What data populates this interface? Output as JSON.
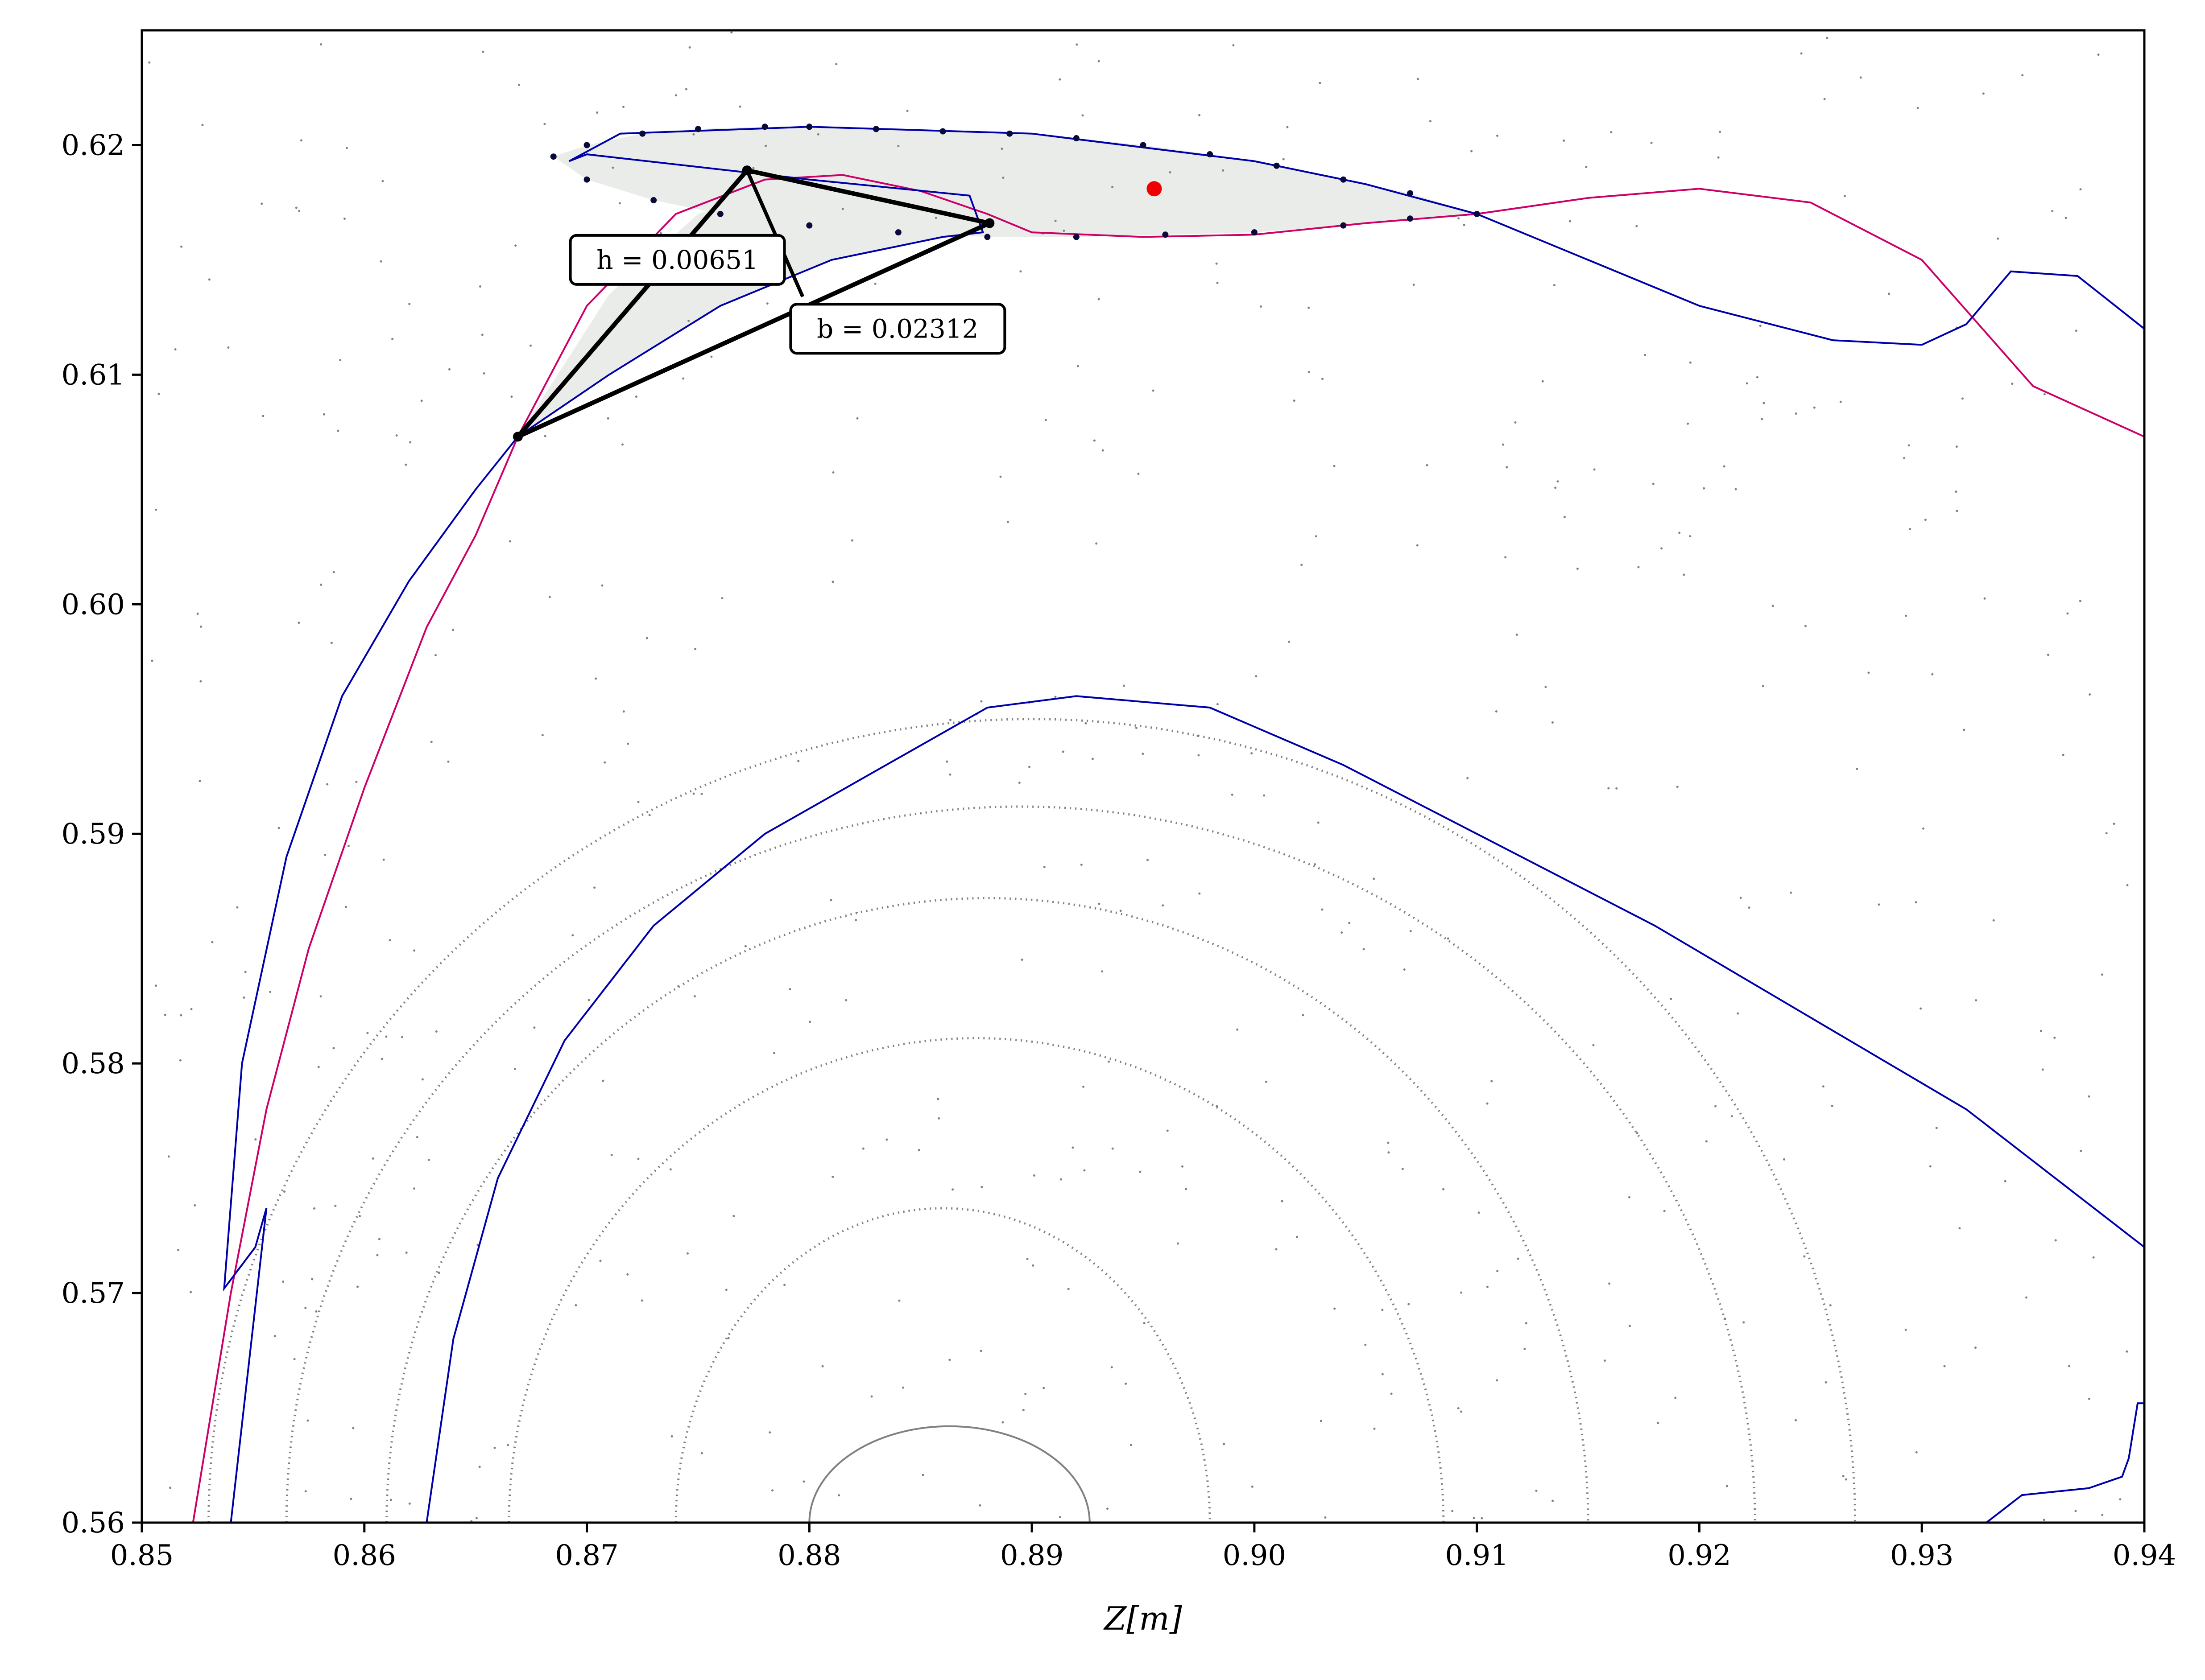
{
  "chart_data": {
    "type": "line",
    "title": "",
    "xlabel": "Z[m]",
    "ylabel": "",
    "xlim": [
      0.85,
      0.94
    ],
    "ylim": [
      0.56,
      0.625
    ],
    "x_ticks": [
      "0.85",
      "0.86",
      "0.87",
      "0.88",
      "0.89",
      "0.90",
      "0.91",
      "0.92",
      "0.93",
      "0.94"
    ],
    "y_ticks": [
      "0.56",
      "0.57",
      "0.58",
      "0.59",
      "0.60",
      "0.61",
      "0.62"
    ],
    "grid": false,
    "colors": {
      "stable_manifold": "#cc0066",
      "unstable_manifold": "#0000aa",
      "poincare_points": "#808080",
      "lobe_fill": "#eaecea",
      "fixed_point": "#ee0000",
      "triangle": "#000000"
    },
    "annotations": [
      {
        "label": "h = 0.00651",
        "h_value": 0.00651
      },
      {
        "label": "b = 0.02312",
        "b_value": 0.02312
      }
    ],
    "triangle_vertices": [
      [
        0.8669,
        0.6073
      ],
      [
        0.8772,
        0.6189
      ],
      [
        0.8881,
        0.6166
      ]
    ],
    "triangle_height_foot": [
      0.8797,
      0.6134
    ],
    "fixed_point": [
      0.8955,
      0.6181
    ],
    "stable_manifold": [
      [
        0.8523,
        0.56
      ],
      [
        0.854,
        0.57
      ],
      [
        0.8556,
        0.578
      ],
      [
        0.8575,
        0.585
      ],
      [
        0.86,
        0.592
      ],
      [
        0.8628,
        0.599
      ],
      [
        0.865,
        0.603
      ],
      [
        0.8669,
        0.6073
      ],
      [
        0.87,
        0.613
      ],
      [
        0.874,
        0.617
      ],
      [
        0.878,
        0.6185
      ],
      [
        0.8815,
        0.6187
      ],
      [
        0.885,
        0.618
      ],
      [
        0.888,
        0.617
      ],
      [
        0.89,
        0.6162
      ],
      [
        0.895,
        0.616
      ],
      [
        0.9,
        0.6161
      ],
      [
        0.905,
        0.6166
      ],
      [
        0.91,
        0.617
      ],
      [
        0.915,
        0.6177
      ],
      [
        0.92,
        0.6181
      ],
      [
        0.925,
        0.6175
      ],
      [
        0.93,
        0.615
      ],
      [
        0.935,
        0.6095
      ],
      [
        0.94,
        0.6073
      ]
    ],
    "unstable_manifold_outer": [
      [
        0.854,
        0.56
      ],
      [
        0.8556,
        0.5737
      ],
      [
        0.8551,
        0.572
      ],
      [
        0.8537,
        0.5702
      ],
      [
        0.8545,
        0.58
      ],
      [
        0.8565,
        0.589
      ],
      [
        0.859,
        0.596
      ],
      [
        0.862,
        0.601
      ],
      [
        0.865,
        0.605
      ],
      [
        0.8669,
        0.6073
      ],
      [
        0.871,
        0.61
      ],
      [
        0.876,
        0.613
      ],
      [
        0.881,
        0.615
      ],
      [
        0.886,
        0.616
      ],
      [
        0.8878,
        0.6162
      ],
      [
        0.8872,
        0.6178
      ],
      [
        0.88,
        0.6185
      ],
      [
        0.87,
        0.6196
      ],
      [
        0.8692,
        0.6193
      ],
      [
        0.8715,
        0.6205
      ],
      [
        0.88,
        0.6208
      ],
      [
        0.89,
        0.6205
      ],
      [
        0.9,
        0.6193
      ],
      [
        0.905,
        0.6183
      ],
      [
        0.91,
        0.617
      ],
      [
        0.915,
        0.615
      ],
      [
        0.92,
        0.613
      ],
      [
        0.926,
        0.6115
      ],
      [
        0.93,
        0.6113
      ],
      [
        0.932,
        0.6122
      ],
      [
        0.934,
        0.6145
      ],
      [
        0.937,
        0.6143
      ],
      [
        0.94,
        0.612
      ]
    ],
    "unstable_manifold_inner": [
      [
        0.8628,
        0.56
      ],
      [
        0.864,
        0.568
      ],
      [
        0.866,
        0.575
      ],
      [
        0.869,
        0.581
      ],
      [
        0.873,
        0.586
      ],
      [
        0.878,
        0.59
      ],
      [
        0.884,
        0.5933
      ],
      [
        0.888,
        0.5955
      ],
      [
        0.892,
        0.596
      ],
      [
        0.898,
        0.5955
      ],
      [
        0.904,
        0.593
      ],
      [
        0.91,
        0.59
      ],
      [
        0.918,
        0.586
      ],
      [
        0.925,
        0.582
      ],
      [
        0.932,
        0.578
      ],
      [
        0.94,
        0.572
      ]
    ],
    "unstable_manifold_corner": [
      [
        0.9329,
        0.56
      ],
      [
        0.9345,
        0.5612
      ],
      [
        0.9375,
        0.5615
      ],
      [
        0.939,
        0.562
      ],
      [
        0.9393,
        0.5628
      ],
      [
        0.9397,
        0.5652
      ],
      [
        0.94,
        0.5652
      ]
    ],
    "lobe_markers": [
      [
        0.8685,
        0.6195
      ],
      [
        0.87,
        0.62
      ],
      [
        0.8725,
        0.6205
      ],
      [
        0.875,
        0.6207
      ],
      [
        0.878,
        0.6208
      ],
      [
        0.88,
        0.6208
      ],
      [
        0.883,
        0.6207
      ],
      [
        0.886,
        0.6206
      ],
      [
        0.889,
        0.6205
      ],
      [
        0.892,
        0.6203
      ],
      [
        0.895,
        0.62
      ],
      [
        0.898,
        0.6196
      ],
      [
        0.901,
        0.6191
      ],
      [
        0.904,
        0.6185
      ],
      [
        0.907,
        0.6179
      ],
      [
        0.91,
        0.617
      ],
      [
        0.87,
        0.6185
      ],
      [
        0.873,
        0.6176
      ],
      [
        0.876,
        0.617
      ],
      [
        0.88,
        0.6165
      ],
      [
        0.884,
        0.6162
      ],
      [
        0.888,
        0.616
      ],
      [
        0.892,
        0.616
      ],
      [
        0.896,
        0.6161
      ],
      [
        0.9,
        0.6162
      ],
      [
        0.904,
        0.6165
      ],
      [
        0.907,
        0.6168
      ]
    ],
    "poincare_sections": [
      {
        "kind": "dense",
        "center": [
          0.8863,
          0.56
        ],
        "rx": 0.0063,
        "ry": 0.0042
      },
      {
        "kind": "dotted",
        "center": [
          0.886,
          0.56
        ],
        "rx": 0.012,
        "ry": 0.0137
      },
      {
        "kind": "dotted",
        "center": [
          0.8875,
          0.56
        ],
        "rx": 0.021,
        "ry": 0.0211
      },
      {
        "kind": "dotted",
        "center": [
          0.888,
          0.56
        ],
        "rx": 0.027,
        "ry": 0.0272
      },
      {
        "kind": "dotted",
        "center": [
          0.8895,
          0.56
        ],
        "rx": 0.033,
        "ry": 0.0312
      },
      {
        "kind": "dotted",
        "center": [
          0.89,
          0.56
        ],
        "rx": 0.037,
        "ry": 0.035
      }
    ]
  }
}
